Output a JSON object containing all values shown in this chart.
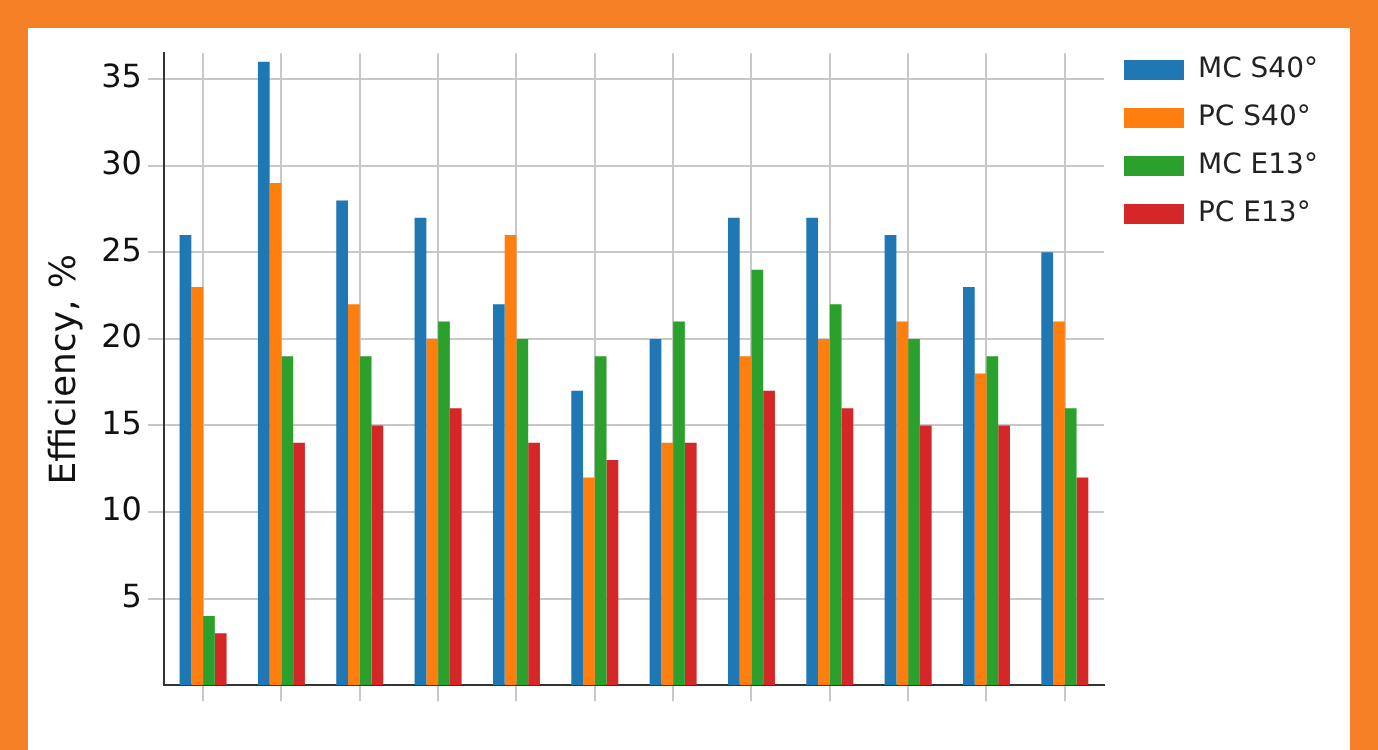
{
  "chart_data": {
    "type": "bar",
    "ylabel": "Efficiency, %",
    "categories": [
      null,
      null,
      null,
      null,
      null,
      null,
      null,
      null,
      null,
      null,
      null,
      null
    ],
    "series": [
      {
        "name": "MC S40°",
        "color": "#1f77b4",
        "values": [
          26,
          36,
          28,
          27,
          22,
          17,
          20,
          27,
          27,
          26,
          23,
          25
        ]
      },
      {
        "name": "PC S40°",
        "color": "#ff7f0e",
        "values": [
          23,
          29,
          22,
          20,
          26,
          12,
          14,
          19,
          20,
          21,
          18,
          21
        ]
      },
      {
        "name": "MC E13°",
        "color": "#2ca02c",
        "values": [
          4,
          19,
          19,
          21,
          20,
          19,
          21,
          24,
          22,
          20,
          19,
          16
        ]
      },
      {
        "name": "PC E13°",
        "color": "#d62728",
        "values": [
          3,
          14,
          15,
          16,
          14,
          13,
          14,
          17,
          16,
          15,
          15,
          12
        ]
      }
    ],
    "ylim": [
      0,
      36.5
    ],
    "yticks": [
      5,
      10,
      15,
      20,
      25,
      30,
      35
    ],
    "grid": true,
    "legend": "top right"
  }
}
